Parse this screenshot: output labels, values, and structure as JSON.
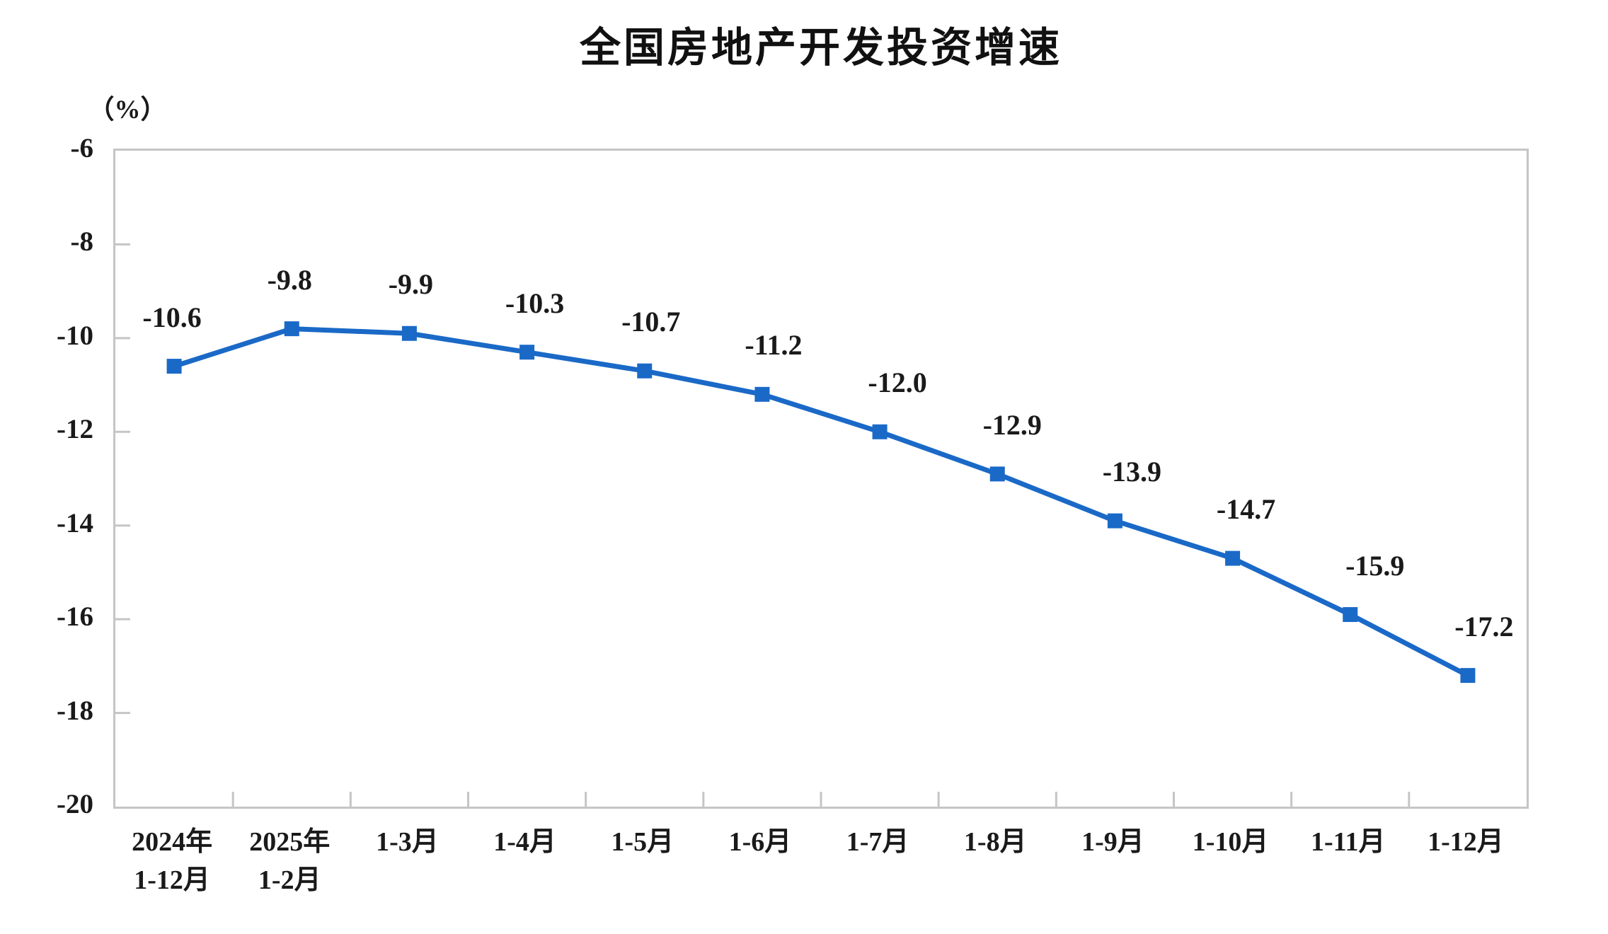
{
  "chart_data": {
    "type": "line",
    "title": "全国房地产开发投资增速",
    "unit_label": "（%）",
    "xlabel": "",
    "ylabel": "（%）",
    "categories": [
      [
        "2024年",
        "1-12月"
      ],
      [
        "2025年",
        "1-2月"
      ],
      [
        "1-3月"
      ],
      [
        "1-4月"
      ],
      [
        "1-5月"
      ],
      [
        "1-6月"
      ],
      [
        "1-7月"
      ],
      [
        "1-8月"
      ],
      [
        "1-9月"
      ],
      [
        "1-10月"
      ],
      [
        "1-11月"
      ],
      [
        "1-12月"
      ]
    ],
    "values": [
      -10.6,
      -9.8,
      -9.9,
      -10.3,
      -10.7,
      -11.2,
      -12.0,
      -12.9,
      -13.9,
      -14.7,
      -15.9,
      -17.2
    ],
    "data_labels": [
      "-10.6",
      "-9.8",
      "-9.9",
      "-10.3",
      "-10.7",
      "-11.2",
      "-12.0",
      "-12.9",
      "-13.9",
      "-14.7",
      "-15.9",
      "-17.2"
    ],
    "y_axis": {
      "min": -20,
      "max": -6,
      "tick_step": 2,
      "tick_labels": [
        "-6",
        "-8",
        "-10",
        "-12",
        "-14",
        "-16",
        "-18",
        "-20"
      ]
    },
    "grid": false,
    "legend": "none",
    "marker": "square",
    "colors": {
      "line": "#1A69C7",
      "marker": "#1A69C7",
      "axis_border": "#C5C5C5",
      "text": "#1A1A1A"
    }
  }
}
